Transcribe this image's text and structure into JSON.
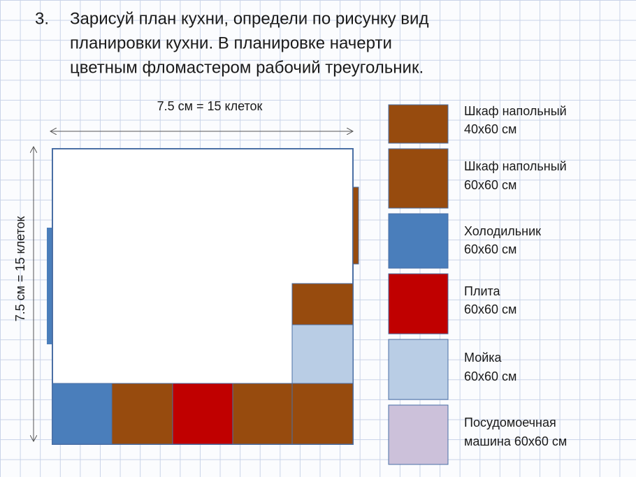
{
  "task": {
    "number": "3.",
    "lines": [
      "Зарисуй план кухни, определи по рисунку вид",
      "планировки кухни. В планировке начерти",
      "цветным фломастером рабочий треугольник."
    ]
  },
  "plan": {
    "width_label": "7.5 см = 15 клеток",
    "height_label": "7.5 см = 15 клеток"
  },
  "legend": [
    {
      "lines": [
        "Шкаф напольный",
        "40x60 см"
      ]
    },
    {
      "lines": [
        "Шкаф напольный",
        "60x60 см"
      ]
    },
    {
      "lines": [
        "Холодильник",
        "60x60 см"
      ]
    },
    {
      "lines": [
        "Плита",
        "60x60 см"
      ]
    },
    {
      "lines": [
        "Мойка",
        "60x60 см"
      ]
    },
    {
      "lines": [
        "Посудомоечная",
        "машина 60x60 см"
      ]
    }
  ]
}
